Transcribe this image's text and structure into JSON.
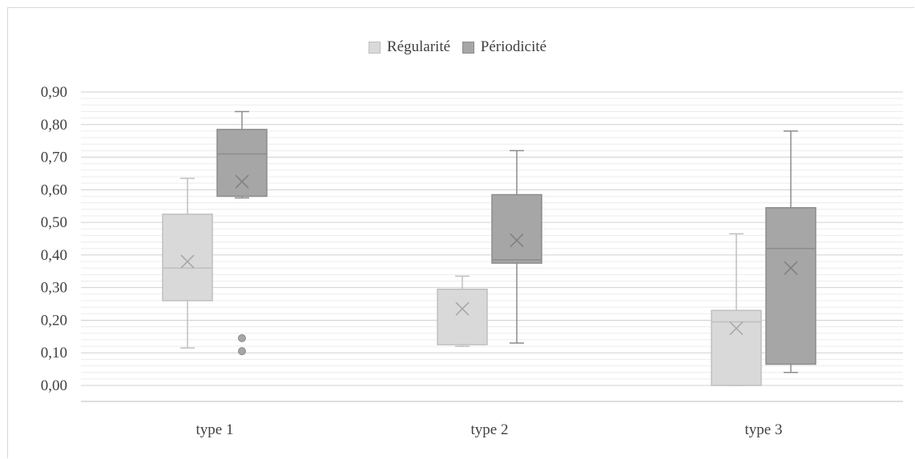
{
  "chart_data": {
    "type": "box",
    "legend_position": "top-center",
    "categories": [
      "type 1",
      "type 2",
      "type 3"
    ],
    "ylim": [
      0,
      0.9
    ],
    "yticks": [
      "0,00",
      "0,10",
      "0,20",
      "0,30",
      "0,40",
      "0,50",
      "0,60",
      "0,70",
      "0,80",
      "0,90"
    ],
    "grid": {
      "major": true,
      "minor": true
    },
    "series": [
      {
        "name": "Régularité",
        "fill": "#d9d9d9",
        "stroke": "#bfbfbf",
        "boxes": [
          {
            "category": "type 1",
            "min": 0.115,
            "q1": 0.26,
            "median": 0.36,
            "q3": 0.525,
            "max": 0.635,
            "mean": 0.38,
            "outliers": []
          },
          {
            "category": "type 2",
            "min": 0.12,
            "q1": 0.125,
            "median": 0.295,
            "q3": 0.295,
            "max": 0.335,
            "mean": 0.235,
            "outliers": []
          },
          {
            "category": "type 3",
            "min": 0.0,
            "q1": 0.0,
            "median": 0.195,
            "q3": 0.23,
            "max": 0.465,
            "mean": 0.175,
            "outliers": []
          }
        ]
      },
      {
        "name": "Périodicité",
        "fill": "#a6a6a6",
        "stroke": "#8c8c8c",
        "boxes": [
          {
            "category": "type 1",
            "min": 0.575,
            "q1": 0.58,
            "median": 0.71,
            "q3": 0.785,
            "max": 0.84,
            "mean": 0.625,
            "outliers": [
              0.145,
              0.105
            ]
          },
          {
            "category": "type 2",
            "min": 0.13,
            "q1": 0.375,
            "median": 0.385,
            "q3": 0.585,
            "max": 0.72,
            "mean": 0.445,
            "outliers": []
          },
          {
            "category": "type 3",
            "min": 0.04,
            "q1": 0.065,
            "median": 0.42,
            "q3": 0.545,
            "max": 0.78,
            "mean": 0.36,
            "outliers": []
          }
        ]
      }
    ]
  }
}
